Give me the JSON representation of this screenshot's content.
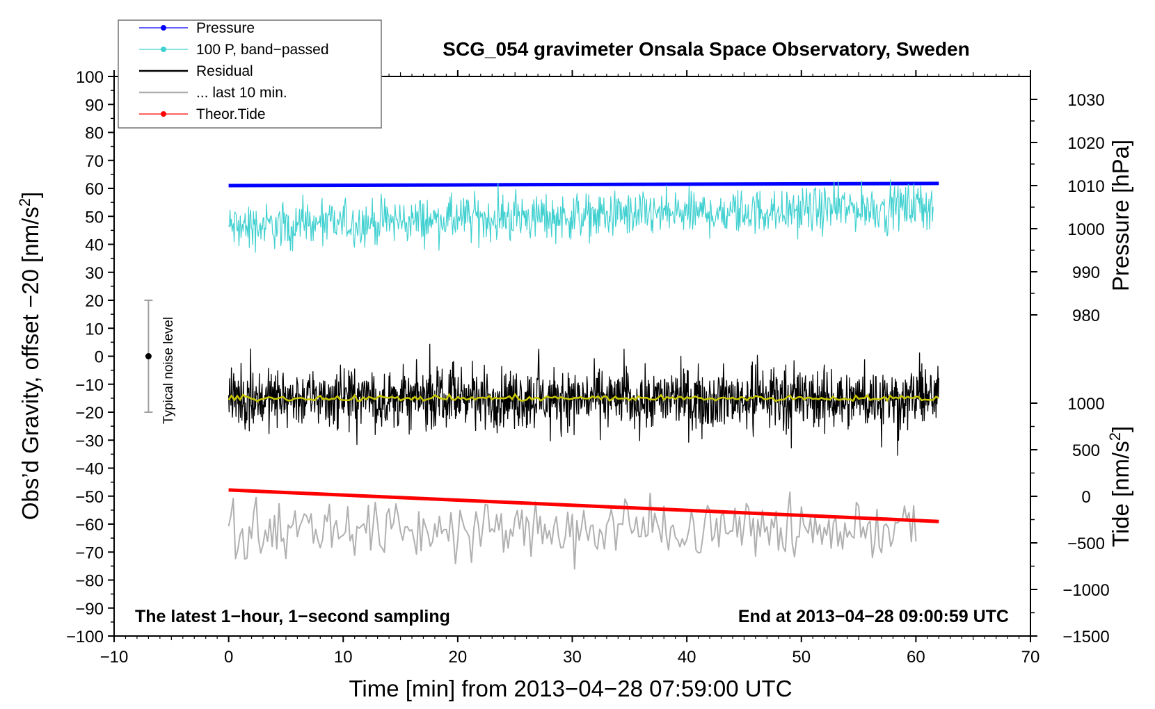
{
  "chart_data": {
    "type": "line",
    "title": "SCG_054 gravimeter Onsala Space Observatory, Sweden",
    "xlabel": "Time [min] from 2013−04−28 07:59:00 UTC",
    "ylabel": "Obs’d Gravity, offset −20 [nm/s",
    "ylabel_sup": "2",
    "ylabel_tail": "]",
    "right_top_label": "Pressure [hPa]",
    "right_bottom_label": "Tide [nm/s",
    "right_bottom_sup": "2",
    "right_bottom_tail": "]",
    "xlim": [
      -10,
      70
    ],
    "ylim": [
      -100,
      100
    ],
    "pressure_axis": {
      "range": [
        980,
        1030
      ],
      "ticks": [
        980,
        990,
        1000,
        1010,
        1020,
        1030
      ],
      "tick_labels": [
        "980",
        "990",
        "1000",
        "1010",
        "1020",
        "1030"
      ]
    },
    "tide_axis": {
      "range": [
        -1500,
        1000
      ],
      "ticks": [
        -1500,
        -1000,
        -500,
        0,
        500,
        1000
      ],
      "tick_labels": [
        "−1500",
        "−1000",
        "−500",
        "0",
        "500",
        "1000"
      ]
    },
    "x_ticks": [
      -10,
      0,
      10,
      20,
      30,
      40,
      50,
      60,
      70
    ],
    "x_tick_labels": [
      "−10",
      "0",
      "10",
      "20",
      "30",
      "40",
      "50",
      "60",
      "70"
    ],
    "y_ticks": [
      100,
      90,
      80,
      70,
      60,
      50,
      40,
      30,
      20,
      10,
      0,
      -10,
      -20,
      -30,
      -40,
      -50,
      -60,
      -70,
      -80,
      -90,
      -100
    ],
    "y_tick_labels": [
      "100",
      "90",
      "80",
      "70",
      "60",
      "50",
      "40",
      "30",
      "20",
      "10",
      "0",
      "−10",
      "−20",
      "−30",
      "−40",
      "−50",
      "−60",
      "−70",
      "−80",
      "−90",
      "−100"
    ],
    "legend": [
      {
        "label": "Pressure",
        "color": "#0000ff",
        "marker": true
      },
      {
        "label": "100 P, band−passed",
        "color": "#40d0d0",
        "marker": true
      },
      {
        "label": "Residual",
        "color": "#000000",
        "marker": false
      },
      {
        "label": "... last 10 min.",
        "color": "#b0b0b0",
        "marker": false
      },
      {
        "label": "Theor.Tide",
        "color": "#ff0000",
        "marker": true
      }
    ],
    "series": [
      {
        "name": "Pressure",
        "color": "#0000ff",
        "axis": "pressure_hPa",
        "x": [
          0,
          62
        ],
        "values": [
          1010.0,
          1010.5
        ]
      },
      {
        "name": "100 P, band−passed",
        "color": "#40d0d0",
        "axis": "gravity",
        "x": [
          0,
          10,
          20,
          30,
          40,
          50,
          61.5
        ],
        "values": [
          46,
          47.5,
          49,
          50,
          51,
          52,
          54
        ],
        "noise_amplitude": 4
      },
      {
        "name": "Residual",
        "color": "#000000",
        "axis": "gravity",
        "x": [
          0,
          62
        ],
        "values": [
          -15,
          -15
        ],
        "noise_amplitude": 5
      },
      {
        "name": "Residual smoothed",
        "color": "#c8c800",
        "axis": "gravity",
        "x": [
          0,
          62
        ],
        "values": [
          -15,
          -15
        ]
      },
      {
        "name": "... last 10 min.",
        "color": "#b0b0b0",
        "axis": "gravity",
        "x": [
          0,
          60
        ],
        "values": [
          -62,
          -62
        ],
        "noise_amplitude": 5
      },
      {
        "name": "Theor.Tide",
        "color": "#ff0000",
        "axis": "tide_nm_s2",
        "x": [
          0,
          62
        ],
        "values": [
          68,
          -270
        ]
      }
    ],
    "noise_bar": {
      "label": "Typical noise level",
      "x": -7,
      "center": 0,
      "low": -20,
      "high": 20
    },
    "annotation_left": "The latest 1−hour, 1−second sampling",
    "annotation_right": "End at 2013−04−28 09:00:59 UTC"
  }
}
